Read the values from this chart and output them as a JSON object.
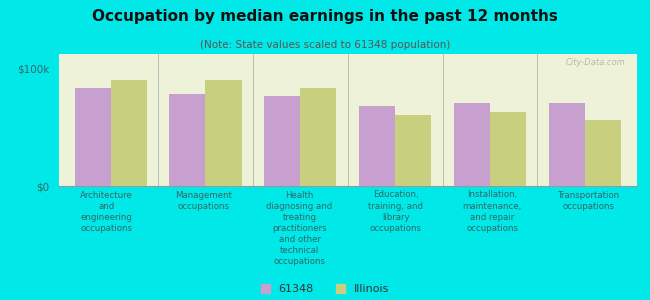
{
  "title": "Occupation by median earnings in the past 12 months",
  "subtitle": "(Note: State values scaled to 61348 population)",
  "background_color": "#00e8e8",
  "plot_bg_color": "#eef2d8",
  "categories": [
    "Architecture\nand\nengineering\noccupations",
    "Management\noccupations",
    "Health\ndiagnosing and\ntreating\npractitioners\nand other\ntechnical\noccupations",
    "Education,\ntraining, and\nlibrary\noccupations",
    "Installation,\nmaintenance,\nand repair\noccupations",
    "Transportation\noccupations"
  ],
  "values_61348": [
    83000,
    78000,
    76000,
    68000,
    70000,
    70000
  ],
  "values_illinois": [
    90000,
    90000,
    83000,
    60000,
    63000,
    56000
  ],
  "color_61348": "#c8a0d0",
  "color_illinois": "#c8d080",
  "ylim": [
    0,
    112000
  ],
  "ytick_labels": [
    "$0",
    "$100k"
  ],
  "ytick_vals": [
    0,
    100000
  ],
  "legend_61348": "61348",
  "legend_illinois": "Illinois",
  "watermark": "City-Data.com"
}
